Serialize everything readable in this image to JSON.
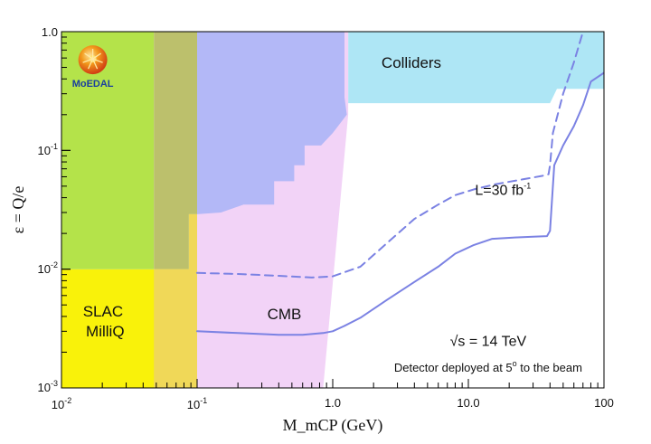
{
  "chart_data": {
    "type": "area",
    "title": "",
    "xlabel": "M_mCP (GeV)",
    "ylabel": "ε = Q/e",
    "x_scale": "log",
    "y_scale": "log",
    "xlim": [
      0.01,
      100
    ],
    "ylim": [
      0.001,
      1.0
    ],
    "x_ticks": [
      {
        "value": 0.01,
        "base": "10",
        "exp": "-2"
      },
      {
        "value": 0.1,
        "base": "10",
        "exp": "-1"
      },
      {
        "value": 1.0,
        "text": "1.0"
      },
      {
        "value": 10.0,
        "text": "10.0"
      },
      {
        "value": 100.0,
        "text": "100"
      }
    ],
    "y_ticks": [
      {
        "value": 0.001,
        "base": "10",
        "exp": "-3"
      },
      {
        "value": 0.01,
        "base": "10",
        "exp": "-2"
      },
      {
        "value": 0.1,
        "base": "10",
        "exp": "-1"
      },
      {
        "value": 1.0,
        "text": "1.0"
      }
    ],
    "regions": [
      {
        "name": "Colliders",
        "label": "Colliders",
        "color": "#aee6f5",
        "label_at": [
          3.8,
          0.55
        ],
        "polygon": [
          [
            0.1,
            1.0
          ],
          [
            100,
            1.0
          ],
          [
            100,
            0.33
          ],
          [
            45,
            0.33
          ],
          [
            40,
            0.25
          ],
          [
            1.3,
            0.25
          ],
          [
            1.3,
            1.0
          ]
        ]
      },
      {
        "name": "CMB",
        "label": "CMB",
        "color": "#f2d3f7",
        "label_at": [
          0.44,
          0.0042
        ],
        "polygon": [
          [
            0.1,
            0.001
          ],
          [
            0.1,
            1.0
          ],
          [
            1.3,
            1.0
          ],
          [
            1.3,
            0.2
          ],
          [
            0.85,
            0.001
          ]
        ]
      },
      {
        "name": "Blue excluded region",
        "label": "",
        "color": "#b3b8f7",
        "polygon": [
          [
            0.1,
            1.0
          ],
          [
            1.22,
            1.0
          ],
          [
            1.22,
            0.28
          ],
          [
            1.27,
            0.2
          ],
          [
            1.0,
            0.14
          ],
          [
            0.82,
            0.11
          ],
          [
            0.62,
            0.11
          ],
          [
            0.62,
            0.075
          ],
          [
            0.52,
            0.075
          ],
          [
            0.52,
            0.055
          ],
          [
            0.37,
            0.055
          ],
          [
            0.37,
            0.035
          ],
          [
            0.22,
            0.035
          ],
          [
            0.15,
            0.03
          ],
          [
            0.1,
            0.029
          ]
        ]
      },
      {
        "name": "SLAC MilliQ",
        "label_lines": [
          "SLAC",
          "MilliQ"
        ],
        "color": "#f9f20a",
        "label_at": [
          0.021,
          0.0036
        ],
        "polygon": [
          [
            0.01,
            0.001
          ],
          [
            0.01,
            0.01
          ],
          [
            0.087,
            0.01
          ],
          [
            0.087,
            0.029
          ],
          [
            0.1,
            0.029
          ],
          [
            0.1,
            0.001
          ]
        ]
      },
      {
        "name": "Green excluded region",
        "label": "",
        "color": "#b4e34a",
        "polygon": [
          [
            0.01,
            0.01
          ],
          [
            0.01,
            1.0
          ],
          [
            0.048,
            1.0
          ],
          [
            0.048,
            0.01
          ]
        ]
      },
      {
        "name": "Olive overlap band",
        "label": "",
        "color": "#bcc06c",
        "polygon": [
          [
            0.048,
            1.0
          ],
          [
            0.1,
            1.0
          ],
          [
            0.1,
            0.029
          ],
          [
            0.087,
            0.029
          ],
          [
            0.087,
            0.01
          ],
          [
            0.048,
            0.01
          ]
        ]
      },
      {
        "name": "Orange overlap band",
        "label": "",
        "color": "#f0d858",
        "polygon": [
          [
            0.048,
            0.001
          ],
          [
            0.048,
            0.01
          ],
          [
            0.087,
            0.01
          ],
          [
            0.087,
            0.029
          ],
          [
            0.1,
            0.029
          ],
          [
            0.1,
            0.001
          ]
        ]
      }
    ],
    "series": [
      {
        "name": "L=30 fb-1 (solid)",
        "style": "solid",
        "color": "#7b82e3",
        "x": [
          0.1,
          0.2,
          0.4,
          0.6,
          0.85,
          1.0,
          1.2,
          1.6,
          2.5,
          4.0,
          6.0,
          8.0,
          11,
          15,
          22,
          30,
          38,
          40,
          43,
          50,
          60,
          70,
          80,
          100
        ],
        "y": [
          0.003,
          0.0029,
          0.0028,
          0.0028,
          0.0029,
          0.003,
          0.0033,
          0.0039,
          0.0055,
          0.0078,
          0.0105,
          0.0135,
          0.016,
          0.018,
          0.0185,
          0.0188,
          0.019,
          0.021,
          0.075,
          0.11,
          0.16,
          0.24,
          0.38,
          0.45
        ]
      },
      {
        "name": "L=30 fb-1 (dashed)",
        "style": "dashed",
        "color": "#7b82e3",
        "x": [
          0.1,
          0.2,
          0.4,
          0.7,
          1.0,
          1.6,
          2.5,
          4.0,
          6.0,
          8.0,
          11,
          16,
          25,
          35,
          39,
          40,
          42,
          50,
          60,
          70
        ],
        "y": [
          0.0093,
          0.0091,
          0.0088,
          0.0085,
          0.0087,
          0.0105,
          0.0165,
          0.0265,
          0.035,
          0.042,
          0.047,
          0.052,
          0.057,
          0.061,
          0.063,
          0.075,
          0.14,
          0.3,
          0.55,
          1.0
        ]
      }
    ],
    "annotations": {
      "luminosity_base": "L=30 fb",
      "luminosity_sup": "-1",
      "luminosity_at": [
        18,
        0.047
      ],
      "energy": "√s = 14 TeV",
      "energy_at": [
        14,
        0.0025
      ],
      "deployment_base": "Detector deployed at 5",
      "deployment_sup": "o",
      "deployment_tail": " to the beam",
      "deployment_at": [
        14,
        0.0015
      ]
    },
    "logo": {
      "text": "MoEDAL",
      "at": [
        0.017,
        0.58
      ]
    }
  }
}
